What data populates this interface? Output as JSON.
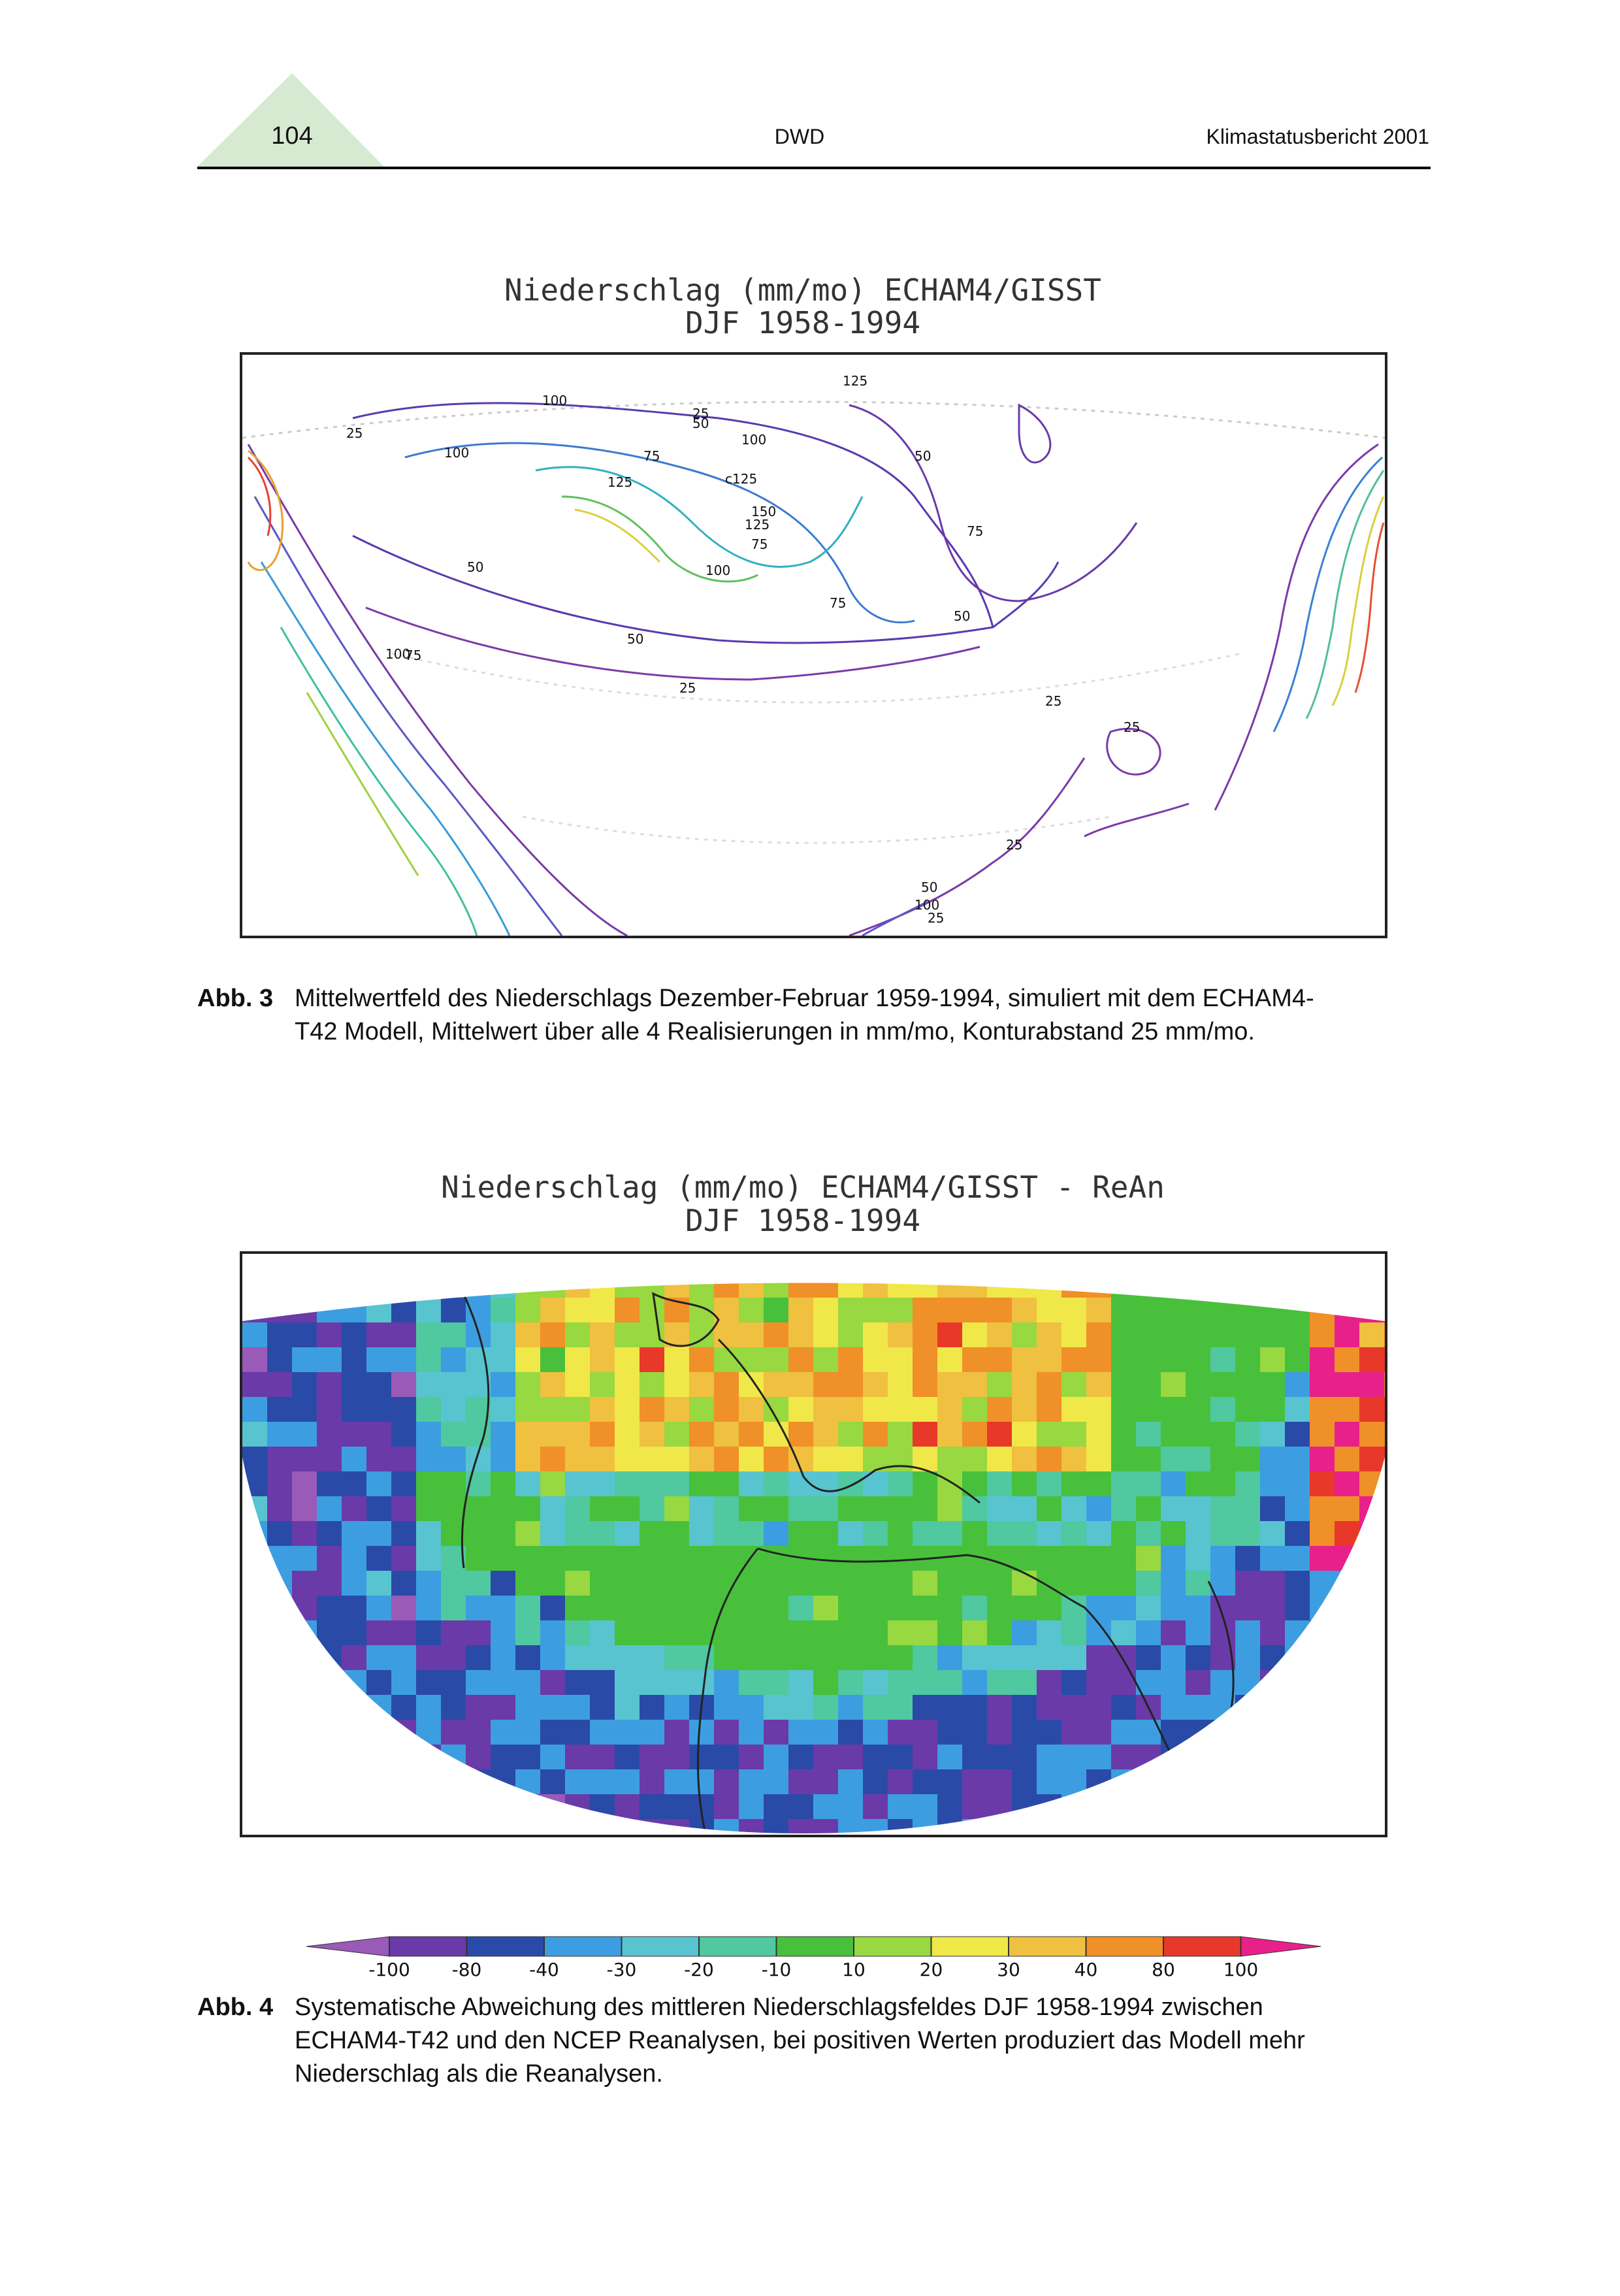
{
  "header": {
    "page_number": "104",
    "center": "DWD",
    "right": "Klimastatusbericht 2001"
  },
  "figure3": {
    "title_lines": [
      "Niederschlag (mm/mo)  ECHAM4/GISST",
      "DJF 1958-1994"
    ],
    "contour_labels": [
      "125",
      "25",
      "100",
      "50",
      "25",
      "100",
      "75",
      "100",
      "125",
      "c125",
      "50",
      "150",
      "100",
      "125",
      "75",
      "50",
      "75",
      "25",
      "50",
      "75",
      "100",
      "75",
      "50",
      "25",
      "25",
      "25",
      "50",
      "100",
      "25"
    ],
    "caption_label": "Abb. 3",
    "caption_lines": [
      "Mittelwertfeld des Niederschlags Dezember-Februar 1959-1994, simuliert mit dem ECHAM4-",
      "T42 Modell, Mittelwert über alle 4 Realisierungen in mm/mo, Konturabstand 25 mm/mo."
    ]
  },
  "figure4": {
    "title_lines": [
      "Niederschlag (mm/mo)  ECHAM4/GISST - ReAn",
      "DJF 1958-1994"
    ],
    "colorbar": {
      "colors": [
        "#9a5ab8",
        "#6a3aa8",
        "#2a4aa8",
        "#3c9ee0",
        "#58c4d0",
        "#50c8a0",
        "#48c03c",
        "#98d840",
        "#f0e848",
        "#f0c040",
        "#f09028",
        "#e8382a",
        "#e8208a"
      ],
      "ticks": [
        -100,
        -80,
        -40,
        -30,
        -20,
        -10,
        10,
        20,
        30,
        40,
        80,
        100
      ]
    },
    "caption_label": "Abb. 4",
    "caption_lines": [
      "Systematische Abweichung des mittleren Niederschlagsfeldes DJF 1958-1994 zwischen",
      "ECHAM4-T42 und den NCEP Reanalysen, bei positiven  Werten produziert das Modell mehr",
      "Niederschlag als die Reanalysen."
    ]
  }
}
